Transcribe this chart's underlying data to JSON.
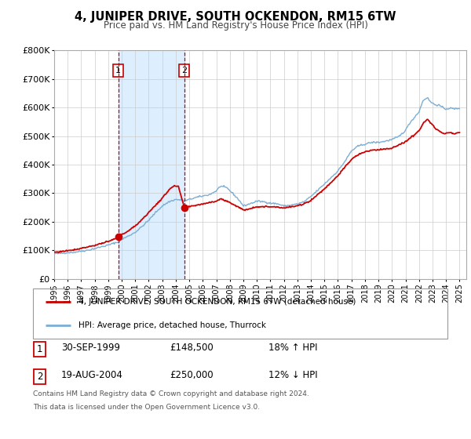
{
  "title": "4, JUNIPER DRIVE, SOUTH OCKENDON, RM15 6TW",
  "subtitle": "Price paid vs. HM Land Registry's House Price Index (HPI)",
  "ylim": [
    0,
    800000
  ],
  "yticks": [
    0,
    100000,
    200000,
    300000,
    400000,
    500000,
    600000,
    700000,
    800000
  ],
  "ytick_labels": [
    "£0",
    "£100K",
    "£200K",
    "£300K",
    "£400K",
    "£500K",
    "£600K",
    "£700K",
    "£800K"
  ],
  "xlim_start": 1995.0,
  "xlim_end": 2025.5,
  "xlabel_years": [
    1995,
    1996,
    1997,
    1998,
    1999,
    2000,
    2001,
    2002,
    2003,
    2004,
    2005,
    2006,
    2007,
    2008,
    2009,
    2010,
    2011,
    2012,
    2013,
    2014,
    2015,
    2016,
    2017,
    2018,
    2019,
    2020,
    2021,
    2022,
    2023,
    2024,
    2025
  ],
  "sale1_date": 1999.75,
  "sale1_price": 148500,
  "sale2_date": 2004.63,
  "sale2_price": 250000,
  "legend_label_red": "4, JUNIPER DRIVE, SOUTH OCKENDON, RM15 6TW (detached house)",
  "legend_label_blue": "HPI: Average price, detached house, Thurrock",
  "table_row1_num": "1",
  "table_row1_date": "30-SEP-1999",
  "table_row1_price": "£148,500",
  "table_row1_hpi": "18% ↑ HPI",
  "table_row2_num": "2",
  "table_row2_date": "19-AUG-2004",
  "table_row2_price": "£250,000",
  "table_row2_hpi": "12% ↓ HPI",
  "footnote_line1": "Contains HM Land Registry data © Crown copyright and database right 2024.",
  "footnote_line2": "This data is licensed under the Open Government Licence v3.0.",
  "red_color": "#cc0000",
  "blue_color": "#7aaed6",
  "shade_color": "#ddeeff",
  "grid_color": "#cccccc",
  "bg_color": "#ffffff",
  "spine_color": "#aaaaaa"
}
